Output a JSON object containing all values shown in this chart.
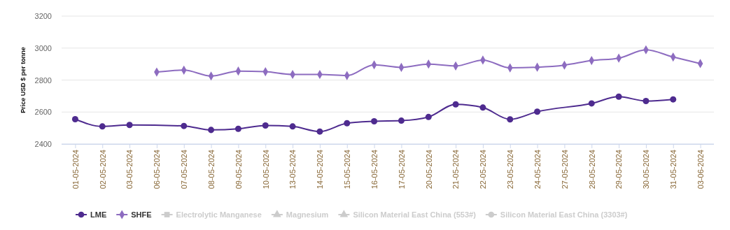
{
  "chart_data": {
    "type": "line",
    "ylabel": "Price USD $ per tonne",
    "categories": [
      "01-05-2024",
      "02-05-2024",
      "03-05-2024",
      "06-05-2024",
      "07-05-2024",
      "08-05-2024",
      "09-05-2024",
      "10-05-2024",
      "13-05-2024",
      "14-05-2024",
      "15-05-2024",
      "16-05-2024",
      "17-05-2024",
      "20-05-2024",
      "21-05-2024",
      "22-05-2024",
      "23-05-2024",
      "24-05-2024",
      "27-05-2024",
      "28-05-2024",
      "29-05-2024",
      "30-05-2024",
      "31-05-2024",
      "03-06-2024"
    ],
    "ylim": [
      2400,
      3200
    ],
    "yticks": [
      2400,
      2600,
      2800,
      3000,
      3200
    ],
    "grid": "y",
    "legend": "bottom",
    "series": [
      {
        "name": "LME",
        "color": "#4e2b8f",
        "marker": "circle",
        "values": [
          2555,
          2510,
          2519,
          null,
          2513,
          2488,
          2495,
          2516,
          2510,
          2478,
          2530,
          2542,
          2546,
          2569,
          2648,
          2628,
          2554,
          2602,
          null,
          2654,
          2696,
          2669,
          2679,
          null
        ]
      },
      {
        "name": "SHFE",
        "color": "#8d6cc0",
        "marker": "diamond",
        "values": [
          null,
          null,
          null,
          2850,
          2862,
          2825,
          2856,
          2852,
          2835,
          2835,
          2828,
          2895,
          2879,
          2900,
          2888,
          2925,
          2876,
          2880,
          2893,
          2922,
          2937,
          2989,
          2944,
          2903
        ]
      },
      {
        "name": "Electrolytic Manganese",
        "color": "#cccccc",
        "marker": "square",
        "values": [
          null,
          null,
          null,
          null,
          null,
          null,
          null,
          null,
          null,
          null,
          null,
          null,
          null,
          null,
          null,
          null,
          null,
          null,
          null,
          null,
          null,
          null,
          null,
          null
        ]
      },
      {
        "name": "Magnesium",
        "color": "#cccccc",
        "marker": "triangle",
        "values": [
          null,
          null,
          null,
          null,
          null,
          null,
          null,
          null,
          null,
          null,
          null,
          null,
          null,
          null,
          null,
          null,
          null,
          null,
          null,
          null,
          null,
          null,
          null,
          null
        ]
      },
      {
        "name": "Silicon Material East China (553#)",
        "color": "#cccccc",
        "marker": "triangle",
        "values": [
          null,
          null,
          null,
          null,
          null,
          null,
          null,
          null,
          null,
          null,
          null,
          null,
          null,
          null,
          null,
          null,
          null,
          null,
          null,
          null,
          null,
          null,
          null,
          null
        ]
      },
      {
        "name": "Silicon Material East China (3303#)",
        "color": "#cccccc",
        "marker": "circle",
        "values": [
          null,
          null,
          null,
          null,
          null,
          null,
          null,
          null,
          null,
          null,
          null,
          null,
          null,
          null,
          null,
          null,
          null,
          null,
          null,
          null,
          null,
          null,
          null,
          null
        ]
      }
    ]
  }
}
